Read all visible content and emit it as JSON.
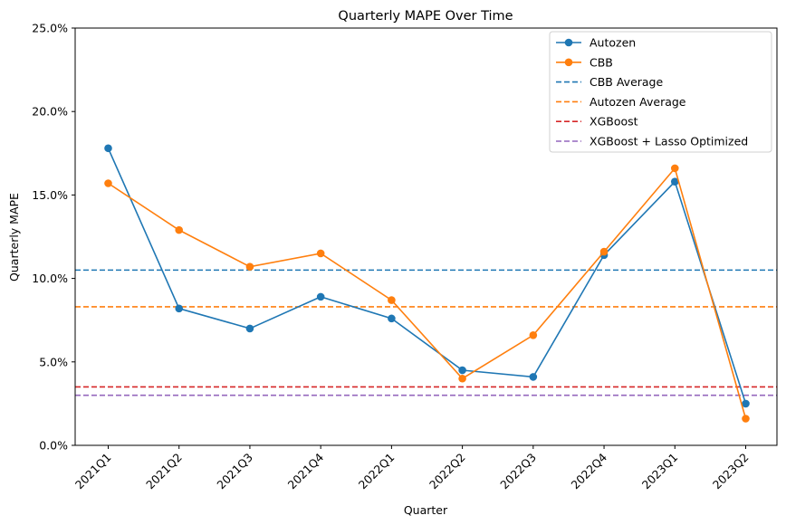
{
  "chart_data": {
    "type": "line",
    "title": "Quarterly MAPE Over Time",
    "xlabel": "Quarter",
    "ylabel": "Quarterly MAPE",
    "categories": [
      "2021Q1",
      "2021Q2",
      "2021Q3",
      "2021Q4",
      "2022Q1",
      "2022Q2",
      "2022Q3",
      "2022Q4",
      "2023Q1",
      "2023Q2"
    ],
    "ylim": [
      0,
      25
    ],
    "yticks": [
      0,
      5,
      10,
      15,
      20,
      25
    ],
    "ytick_labels": [
      "0.0%",
      "5.0%",
      "10.0%",
      "15.0%",
      "20.0%",
      "25.0%"
    ],
    "grid": false,
    "legend_position": "top-right",
    "series": [
      {
        "name": "Autozen",
        "color": "#1f77b4",
        "style": "solid-marker",
        "values": [
          17.8,
          8.2,
          7.0,
          8.9,
          7.6,
          4.5,
          4.1,
          11.4,
          15.8,
          2.5
        ]
      },
      {
        "name": "CBB",
        "color": "#ff7f0e",
        "style": "solid-marker",
        "values": [
          15.7,
          12.9,
          10.7,
          11.5,
          8.7,
          4.0,
          6.6,
          11.6,
          16.6,
          1.6
        ]
      }
    ],
    "reference_lines": [
      {
        "name": "CBB Average",
        "color": "#1f77b4",
        "style": "dashed",
        "value": 10.5
      },
      {
        "name": "Autozen Average",
        "color": "#ff7f0e",
        "style": "dashed",
        "value": 8.3
      },
      {
        "name": "XGBoost",
        "color": "#d62728",
        "style": "dashed",
        "value": 3.5
      },
      {
        "name": "XGBoost + Lasso Optimized",
        "color": "#9467bd",
        "style": "dashed",
        "value": 3.0
      }
    ]
  }
}
